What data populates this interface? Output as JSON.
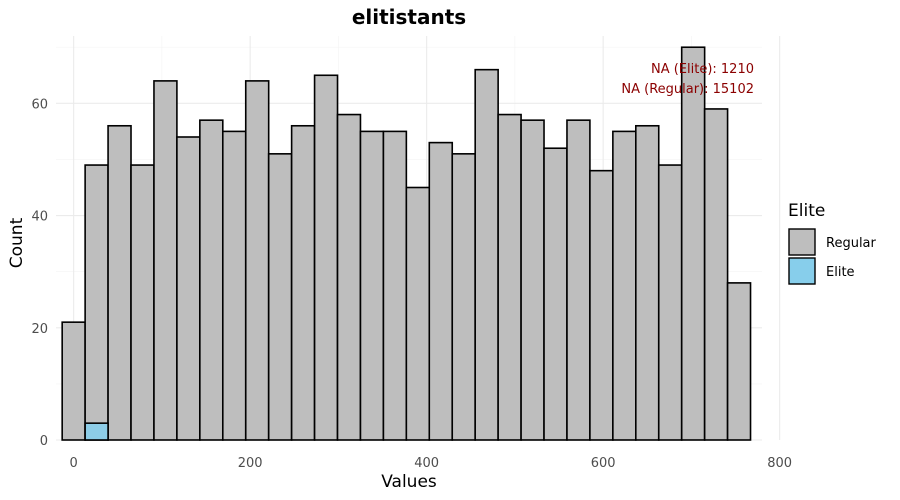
{
  "chart_data": {
    "type": "bar",
    "title": "elitistants",
    "xlabel": "Values",
    "ylabel": "Count",
    "xlim": [
      -20,
      780
    ],
    "ylim": [
      0,
      72
    ],
    "x_ticks": [
      0,
      200,
      400,
      600,
      800
    ],
    "y_ticks": [
      0,
      20,
      40,
      60
    ],
    "grid": true,
    "bin_width": 26,
    "bin_start": -13,
    "series": [
      {
        "name": "Regular",
        "color": "#bebebe",
        "values": [
          21,
          49,
          56,
          49,
          64,
          54,
          57,
          55,
          64,
          51,
          56,
          65,
          58,
          55,
          55,
          45,
          53,
          51,
          66,
          58,
          57,
          52,
          57,
          48,
          55,
          56,
          49,
          70,
          59,
          28
        ]
      },
      {
        "name": "Elite",
        "color": "#87ceeb",
        "values": [
          0,
          3,
          0,
          0,
          0,
          0,
          0,
          0,
          0,
          0,
          0,
          0,
          0,
          0,
          0,
          0,
          0,
          0,
          0,
          0,
          0,
          0,
          0,
          0,
          0,
          0,
          0,
          0,
          0,
          0
        ]
      }
    ],
    "legend": {
      "title": "Elite",
      "position": "right",
      "items": [
        "Regular",
        "Elite"
      ]
    },
    "annotations": {
      "na_elite": "NA (Elite): 1210",
      "na_regular": "NA (Regular): 15102",
      "color": "#8b0000"
    }
  }
}
